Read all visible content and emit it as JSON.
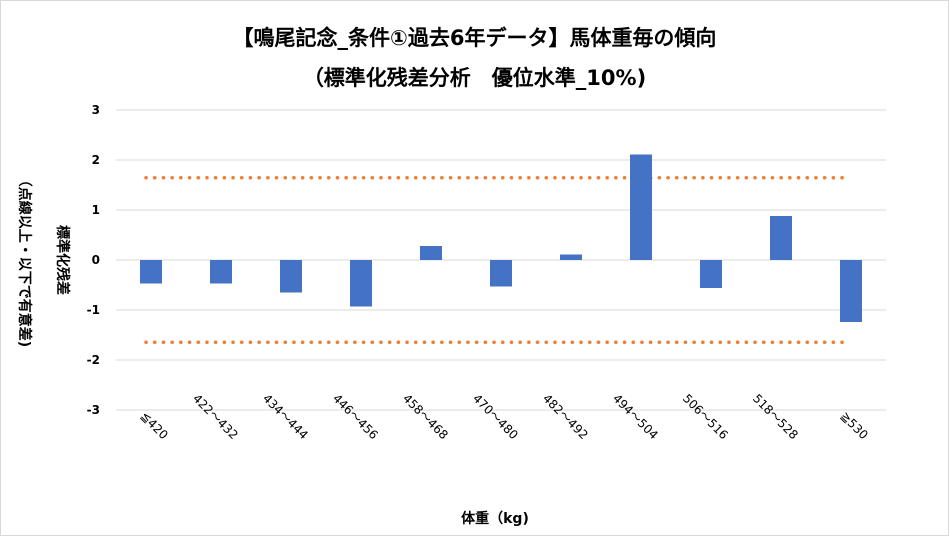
{
  "title": {
    "line1": "【鳴尾記念_条件①過去6年データ】馬体重毎の傾向",
    "line2": "（標準化残差分析　優位水準_10%)"
  },
  "colors": {
    "bar": "#4472c4",
    "threshold": "#ed7d31",
    "grid": "#d9d9d9"
  },
  "chart_data": {
    "type": "bar",
    "categories": [
      "≦420",
      "422～432",
      "434～444",
      "446～456",
      "458～468",
      "470～480",
      "482～492",
      "494～504",
      "506～516",
      "518～528",
      "≧530"
    ],
    "values": [
      -0.47,
      -0.47,
      -0.65,
      -0.93,
      0.28,
      -0.53,
      0.11,
      2.11,
      -0.56,
      0.88,
      -1.24
    ],
    "ylim": [
      -3,
      3
    ],
    "yticks": [
      3,
      2,
      1,
      0,
      -1,
      -2,
      -3
    ],
    "threshold_upper": 1.645,
    "threshold_lower": -1.645,
    "xlabel": "体重（kg)",
    "ylabel_main": "標準化残差",
    "ylabel_note": "（点線以上・以下で有意差)",
    "grid": true,
    "legend": "none"
  }
}
